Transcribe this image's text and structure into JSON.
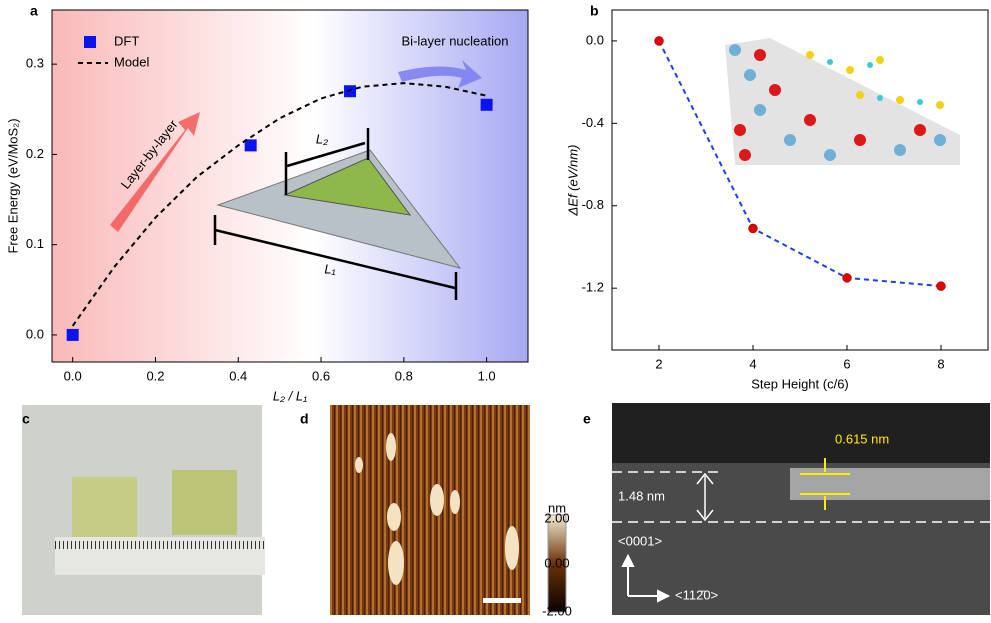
{
  "chart_data": [
    {
      "type": "line",
      "panel_label": "a",
      "x_label": "L₂ / L₁",
      "y_label": "Free Energy (eV/MoS₂)",
      "xlim": [
        -0.05,
        1.1
      ],
      "ylim": [
        -0.03,
        0.36
      ],
      "xticks": [
        {
          "value": 0,
          "label": "0.0"
        },
        0.2,
        0.4,
        0.6,
        0.8,
        {
          "value": 1,
          "label": "1.0"
        }
      ],
      "yticks": [
        {
          "value": 0,
          "label": "0.0"
        },
        0.1,
        0.2,
        0.3
      ],
      "legend": "upper left",
      "series": [
        {
          "name": "DFT",
          "color": "#0a14f0",
          "marker": "square",
          "line": "none",
          "x": [
            0,
            0.43,
            0.67,
            1.0
          ],
          "values": [
            0,
            0.21,
            0.27,
            0.255
          ]
        },
        {
          "name": "Model",
          "color": "#000000",
          "marker": "none",
          "line": "dashed",
          "x": [
            0,
            0.1,
            0.2,
            0.3,
            0.4,
            0.5,
            0.6,
            0.7,
            0.8,
            0.9,
            1.0
          ],
          "values": [
            0.01,
            0.075,
            0.13,
            0.175,
            0.21,
            0.24,
            0.262,
            0.275,
            0.279,
            0.275,
            0.265
          ]
        }
      ],
      "annotations": [
        "Bi-layer nucleation",
        "Layer-by-layer",
        "L₂",
        "L₁"
      ]
    },
    {
      "type": "line",
      "panel_label": "b",
      "x_label": "Step Height (c/6)",
      "y_label": "ΔEf (eV/nm)",
      "xlim": [
        1,
        9
      ],
      "ylim": [
        -1.5,
        0.15
      ],
      "xticks": [
        2,
        4,
        6,
        8
      ],
      "yticks": [
        {
          "value": 0,
          "label": "0.0"
        },
        -0.4,
        -0.8,
        -1.2
      ],
      "series": [
        {
          "color": "#e00000",
          "line_color": "#1f3fe0",
          "marker": "circle",
          "line": "dashed",
          "x": [
            2,
            4,
            6,
            8
          ],
          "values": [
            0,
            -0.91,
            -1.15,
            -1.19
          ]
        }
      ]
    }
  ],
  "images": [
    {
      "panel_label": "c"
    },
    {
      "panel_label": "d",
      "colorbar_unit": "nm",
      "colorbar_labels": [
        "2.00",
        "0.00",
        "-2.00"
      ]
    },
    {
      "panel_label": "e",
      "labels": [
        "0.615 nm",
        "1.48 nm",
        "<0001>",
        "<112̄0>"
      ]
    }
  ]
}
